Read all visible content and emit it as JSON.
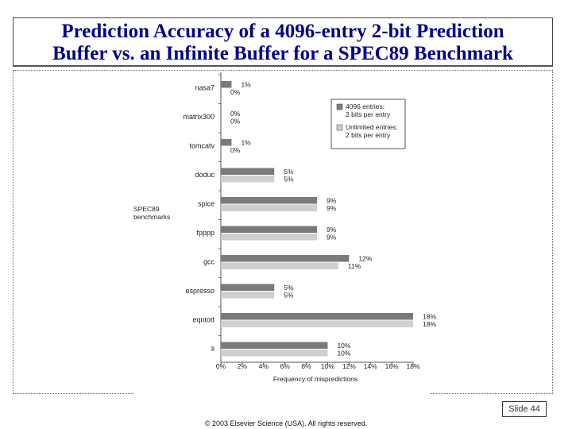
{
  "slide": {
    "title_line1": "Prediction Accuracy of a 4096-entry 2-bit Prediction",
    "title_line2": "Buffer vs. an Infinite Buffer for a SPEC89 Benchmark",
    "slide_number": "Slide 44",
    "copyright": "© 2003 Elsevier Science (USA). All rights reserved."
  },
  "chart_data": {
    "type": "bar",
    "orientation": "horizontal",
    "title": "",
    "xlabel": "Frequency of mispredictions",
    "ylabel": "SPEC89 benchmarks",
    "categories": [
      "nasa7",
      "matrix300",
      "tomcatv",
      "doduc",
      "spice",
      "fpppp",
      "gcc",
      "espresso",
      "eqntott",
      "li"
    ],
    "series": [
      {
        "name": "4096 entries: 2 bits per entry",
        "color": "#7a7a7a",
        "values": [
          1,
          0,
          1,
          5,
          9,
          9,
          12,
          5,
          18,
          10
        ],
        "labels": [
          "1%",
          "0%",
          "1%",
          "5%",
          "9%",
          "9%",
          "12%",
          "5%",
          "18%",
          "10%"
        ]
      },
      {
        "name": "Unlimited entries: 2 bits per entry",
        "color": "#cfcfcf",
        "values": [
          0,
          0,
          0,
          5,
          9,
          9,
          11,
          5,
          18,
          10
        ],
        "labels": [
          "0%",
          "0%",
          "0%",
          "5%",
          "9%",
          "9%",
          "11%",
          "5%",
          "18%",
          "10%"
        ]
      }
    ],
    "xlim": [
      0,
      18
    ],
    "xticks": [
      0,
      2,
      4,
      6,
      8,
      10,
      12,
      14,
      16,
      18
    ],
    "xtick_labels": [
      "0%",
      "2%",
      "4%",
      "6%",
      "8%",
      "10%",
      "12%",
      "14%",
      "16%",
      "18%"
    ],
    "legend": {
      "position": "top-right",
      "entries": [
        {
          "line1": "4096 entries:",
          "line2": "2 bits per entry",
          "color": "#7a7a7a"
        },
        {
          "line1": "Unlimited entries:",
          "line2": "2 bits per entry",
          "color": "#cfcfcf"
        }
      ]
    },
    "grid": false
  }
}
